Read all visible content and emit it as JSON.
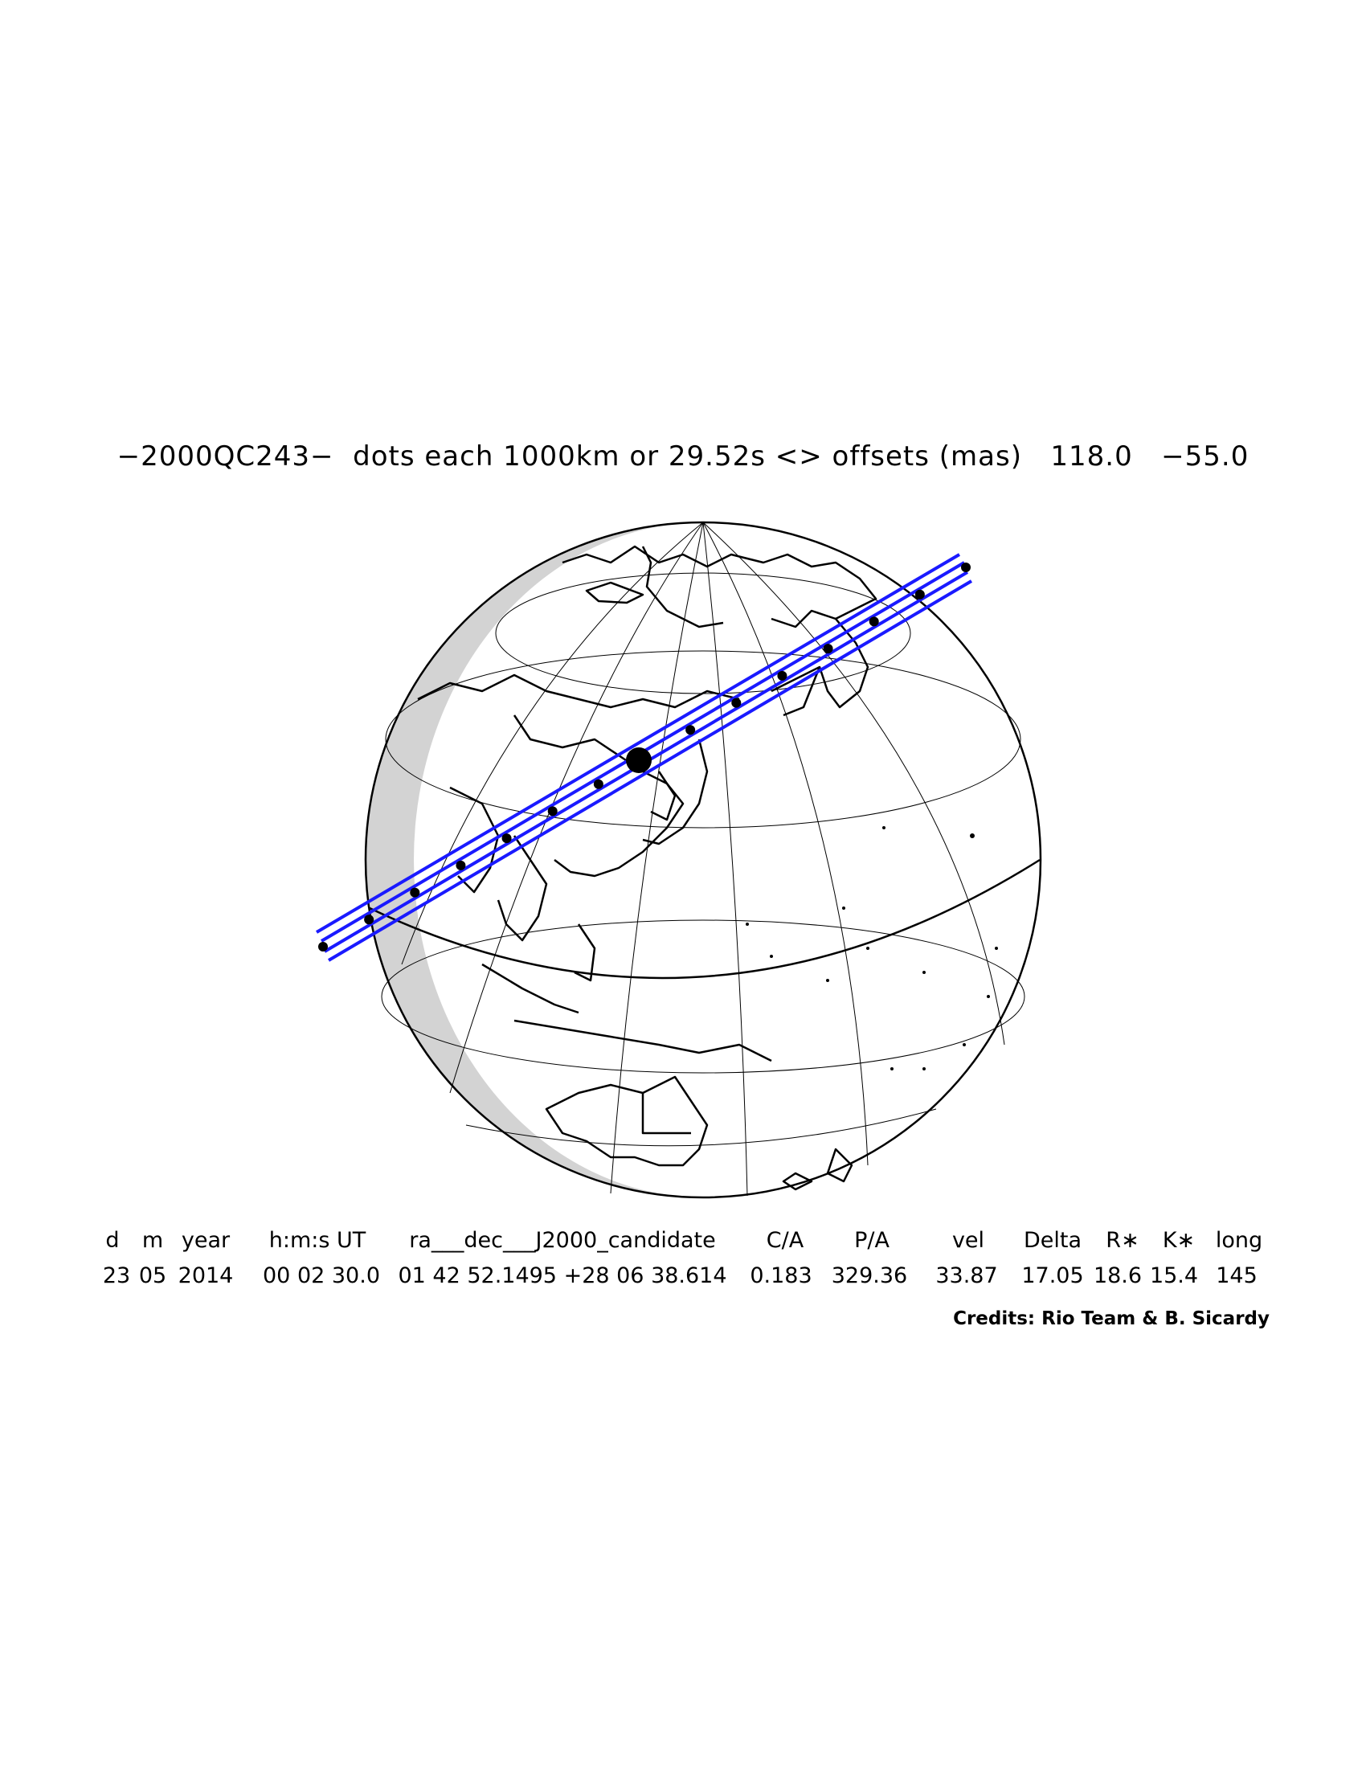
{
  "title": "−2000QC243−  dots each 1000km or 29.52s <> offsets (mas)   118.0   −55.0",
  "table": {
    "headers": [
      "d",
      "m",
      "year",
      "h:m:s UT",
      "ra___dec___J2000_candidate",
      "C/A",
      "P/A",
      "vel",
      "Delta",
      "R∗",
      "K∗",
      "long"
    ],
    "values": [
      "23",
      "05",
      "2014",
      "00 02 30.0",
      "01 42 52.1495 +28 06 38.614",
      "0.183",
      "329.36",
      "33.87",
      "17.05",
      "18.6",
      "15.4",
      "145"
    ]
  },
  "credits": "Credits: Rio Team & B. Sicardy",
  "map": {
    "projection": "orthographic globe",
    "track_color": "#1a1aff",
    "shadow_color": "#d3d3d3",
    "dot_spacing_km": 1000
  }
}
